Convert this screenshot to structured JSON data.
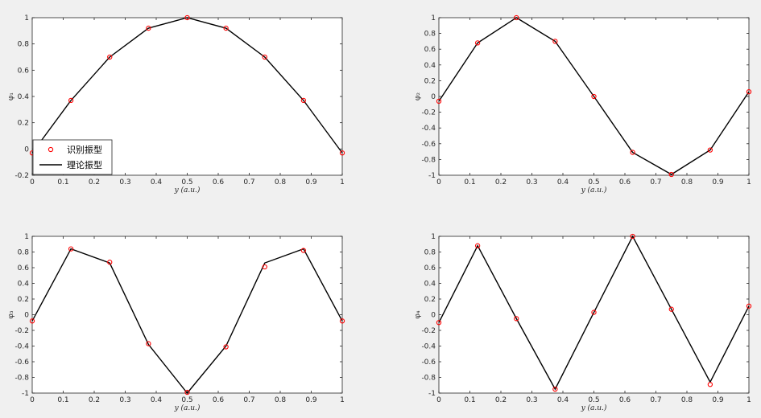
{
  "chart_data": [
    {
      "type": "line",
      "xlabel": "y (a.u.)",
      "ylabel": "φ₁",
      "xlim": [
        0,
        1
      ],
      "ylim": [
        -0.2,
        1
      ],
      "xticks": [
        "0",
        "0.1",
        "0.2",
        "0.3",
        "0.4",
        "0.5",
        "0.6",
        "0.7",
        "0.8",
        "0.9",
        "1"
      ],
      "yticks": [
        "-0.2",
        "0",
        "0.2",
        "0.4",
        "0.6",
        "0.8",
        "1"
      ],
      "grid": false,
      "legend_position": "bottom-left",
      "x": [
        0,
        0.125,
        0.25,
        0.375,
        0.5,
        0.625,
        0.75,
        0.875,
        1
      ],
      "series": [
        {
          "name": "识别振型",
          "style": "marker",
          "values": [
            -0.03,
            0.37,
            0.7,
            0.92,
            1.0,
            0.92,
            0.7,
            0.37,
            -0.03
          ]
        },
        {
          "name": "理论振型",
          "style": "line",
          "values": [
            -0.03,
            0.37,
            0.7,
            0.92,
            1.0,
            0.92,
            0.7,
            0.37,
            -0.03
          ]
        }
      ]
    },
    {
      "type": "line",
      "xlabel": "y (a.u.)",
      "ylabel": "φ₂",
      "xlim": [
        0,
        1
      ],
      "ylim": [
        -1,
        1
      ],
      "xticks": [
        "0",
        "0.1",
        "0.2",
        "0.3",
        "0.4",
        "0.5",
        "0.6",
        "0.7",
        "0.8",
        "0.9",
        "1"
      ],
      "yticks": [
        "-1",
        "-0.8",
        "-0.6",
        "-0.4",
        "-0.2",
        "0",
        "0.2",
        "0.4",
        "0.6",
        "0.8",
        "1"
      ],
      "grid": false,
      "x": [
        0,
        0.125,
        0.25,
        0.375,
        0.5,
        0.625,
        0.75,
        0.875,
        1
      ],
      "series": [
        {
          "name": "识别振型",
          "style": "marker",
          "values": [
            -0.06,
            0.68,
            1.0,
            0.7,
            0.0,
            -0.71,
            -0.99,
            -0.68,
            0.06
          ]
        },
        {
          "name": "理论振型",
          "style": "line",
          "values": [
            -0.06,
            0.68,
            1.0,
            0.7,
            0.0,
            -0.71,
            -0.99,
            -0.68,
            0.06
          ]
        }
      ]
    },
    {
      "type": "line",
      "xlabel": "y (a.u.)",
      "ylabel": "φ₃",
      "xlim": [
        0,
        1
      ],
      "ylim": [
        -1,
        1
      ],
      "xticks": [
        "0",
        "0.1",
        "0.2",
        "0.3",
        "0.4",
        "0.5",
        "0.6",
        "0.7",
        "0.8",
        "0.9",
        "1"
      ],
      "yticks": [
        "-1",
        "-0.8",
        "-0.6",
        "-0.4",
        "-0.2",
        "0",
        "0.2",
        "0.4",
        "0.6",
        "0.8",
        "1"
      ],
      "grid": false,
      "x": [
        0,
        0.125,
        0.25,
        0.375,
        0.5,
        0.625,
        0.75,
        0.875,
        1
      ],
      "series": [
        {
          "name": "识别振型",
          "style": "marker",
          "values": [
            -0.08,
            0.84,
            0.67,
            -0.37,
            -0.99,
            -0.41,
            0.61,
            0.82,
            -0.08
          ]
        },
        {
          "name": "理论振型",
          "style": "line",
          "values": [
            -0.08,
            0.84,
            0.66,
            -0.38,
            -1.0,
            -0.4,
            0.66,
            0.84,
            -0.08
          ]
        }
      ]
    },
    {
      "type": "line",
      "xlabel": "y (a.u.)",
      "ylabel": "φ₄",
      "xlim": [
        0,
        1
      ],
      "ylim": [
        -1,
        1
      ],
      "xticks": [
        "0",
        "0.1",
        "0.2",
        "0.3",
        "0.4",
        "0.5",
        "0.6",
        "0.7",
        "0.8",
        "0.9",
        "1"
      ],
      "yticks": [
        "-1",
        "-0.8",
        "-0.6",
        "-0.4",
        "-0.2",
        "0",
        "0.2",
        "0.4",
        "0.6",
        "0.8",
        "1"
      ],
      "grid": false,
      "x": [
        0,
        0.125,
        0.25,
        0.375,
        0.5,
        0.625,
        0.75,
        0.875,
        1
      ],
      "series": [
        {
          "name": "识别振型",
          "style": "marker",
          "values": [
            -0.1,
            0.88,
            -0.05,
            -0.95,
            0.03,
            1.0,
            0.07,
            -0.89,
            0.11
          ]
        },
        {
          "name": "理论振型",
          "style": "line",
          "values": [
            -0.1,
            0.88,
            -0.05,
            -0.95,
            0.03,
            1.0,
            0.07,
            -0.86,
            0.11
          ]
        }
      ]
    }
  ],
  "legend": {
    "identified_label": "识别振型",
    "theory_label": "理论振型"
  },
  "colors": {
    "identified_marker": "#ff0000",
    "theory_line": "#000000",
    "figure_background": "#f0f0f0",
    "axes_background": "#ffffff"
  }
}
